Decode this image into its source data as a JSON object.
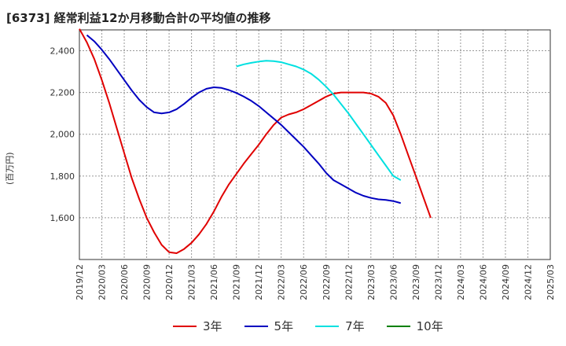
{
  "chart_data": {
    "type": "line",
    "title": "[6373]  経常利益12か月移動合計の平均値の推移",
    "ylabel": "(百万円)",
    "ylim": [
      1400,
      2500
    ],
    "yticks": [
      1600,
      1800,
      2000,
      2200,
      2400
    ],
    "ytick_labels": [
      "1,600",
      "1,800",
      "2,000",
      "2,200",
      "2,400"
    ],
    "xtick_labels": [
      "2019/12",
      "2020/03",
      "2020/06",
      "2020/09",
      "2020/12",
      "2021/03",
      "2021/06",
      "2021/09",
      "2021/12",
      "2022/03",
      "2022/06",
      "2022/09",
      "2022/12",
      "2023/03",
      "2023/06",
      "2023/09",
      "2023/12",
      "2024/03",
      "2024/06",
      "2024/09",
      "2024/12",
      "2025/03"
    ],
    "grid": true,
    "legend_position": "bottom",
    "series": [
      {
        "name": "3年",
        "color": "#e00000",
        "points": [
          [
            0,
            2505
          ],
          [
            1,
            2440
          ],
          [
            2,
            2360
          ],
          [
            3,
            2260
          ],
          [
            4,
            2150
          ],
          [
            5,
            2030
          ],
          [
            6,
            1910
          ],
          [
            7,
            1790
          ],
          [
            8,
            1690
          ],
          [
            9,
            1600
          ],
          [
            10,
            1530
          ],
          [
            11,
            1470
          ],
          [
            12,
            1435
          ],
          [
            13,
            1430
          ],
          [
            14,
            1450
          ],
          [
            15,
            1480
          ],
          [
            16,
            1520
          ],
          [
            17,
            1570
          ],
          [
            18,
            1630
          ],
          [
            19,
            1700
          ],
          [
            20,
            1760
          ],
          [
            21,
            1810
          ],
          [
            22,
            1860
          ],
          [
            23,
            1905
          ],
          [
            24,
            1950
          ],
          [
            25,
            2000
          ],
          [
            26,
            2045
          ],
          [
            27,
            2080
          ],
          [
            28,
            2095
          ],
          [
            29,
            2105
          ],
          [
            30,
            2120
          ],
          [
            31,
            2140
          ],
          [
            32,
            2160
          ],
          [
            33,
            2180
          ],
          [
            34,
            2195
          ],
          [
            35,
            2200
          ],
          [
            36,
            2200
          ],
          [
            37,
            2200
          ],
          [
            38,
            2200
          ],
          [
            39,
            2195
          ],
          [
            40,
            2180
          ],
          [
            41,
            2150
          ],
          [
            42,
            2090
          ],
          [
            43,
            2000
          ],
          [
            44,
            1900
          ],
          [
            45,
            1800
          ],
          [
            46,
            1700
          ],
          [
            47,
            1600
          ]
        ]
      },
      {
        "name": "5年",
        "color": "#0000c0",
        "points": [
          [
            1,
            2475
          ],
          [
            2,
            2445
          ],
          [
            3,
            2405
          ],
          [
            4,
            2360
          ],
          [
            5,
            2310
          ],
          [
            6,
            2260
          ],
          [
            7,
            2210
          ],
          [
            8,
            2165
          ],
          [
            9,
            2130
          ],
          [
            10,
            2105
          ],
          [
            11,
            2100
          ],
          [
            12,
            2105
          ],
          [
            13,
            2120
          ],
          [
            14,
            2145
          ],
          [
            15,
            2175
          ],
          [
            16,
            2200
          ],
          [
            17,
            2218
          ],
          [
            18,
            2225
          ],
          [
            19,
            2222
          ],
          [
            20,
            2212
          ],
          [
            21,
            2198
          ],
          [
            22,
            2180
          ],
          [
            23,
            2160
          ],
          [
            24,
            2135
          ],
          [
            25,
            2105
          ],
          [
            26,
            2075
          ],
          [
            27,
            2045
          ],
          [
            28,
            2010
          ],
          [
            29,
            1975
          ],
          [
            30,
            1940
          ],
          [
            31,
            1900
          ],
          [
            32,
            1860
          ],
          [
            33,
            1815
          ],
          [
            34,
            1780
          ],
          [
            35,
            1760
          ],
          [
            36,
            1740
          ],
          [
            37,
            1720
          ],
          [
            38,
            1705
          ],
          [
            39,
            1695
          ],
          [
            40,
            1688
          ],
          [
            41,
            1685
          ],
          [
            42,
            1680
          ],
          [
            43,
            1670
          ]
        ]
      },
      {
        "name": "7年",
        "color": "#00e0e0",
        "points": [
          [
            21,
            2325
          ],
          [
            22,
            2335
          ],
          [
            23,
            2342
          ],
          [
            24,
            2348
          ],
          [
            25,
            2352
          ],
          [
            26,
            2350
          ],
          [
            27,
            2345
          ],
          [
            28,
            2335
          ],
          [
            29,
            2325
          ],
          [
            30,
            2310
          ],
          [
            31,
            2290
          ],
          [
            32,
            2262
          ],
          [
            33,
            2228
          ],
          [
            34,
            2190
          ],
          [
            35,
            2145
          ],
          [
            36,
            2100
          ],
          [
            37,
            2050
          ],
          [
            38,
            2000
          ],
          [
            39,
            1950
          ],
          [
            40,
            1900
          ],
          [
            41,
            1850
          ],
          [
            42,
            1800
          ],
          [
            43,
            1780
          ]
        ]
      },
      {
        "name": "10年",
        "color": "#008000",
        "points": []
      }
    ]
  }
}
